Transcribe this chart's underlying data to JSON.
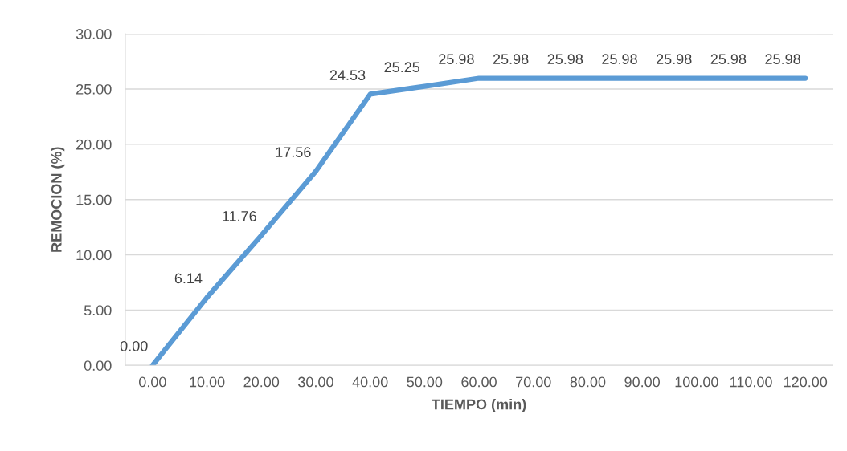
{
  "chart_data": {
    "type": "line",
    "xlabel": "TIEMPO (min)",
    "ylabel": "REMOCION (%)",
    "categories": [
      "0.00",
      "10.00",
      "20.00",
      "30.00",
      "40.00",
      "50.00",
      "60.00",
      "70.00",
      "80.00",
      "90.00",
      "100.00",
      "110.00",
      "120.00"
    ],
    "series": [
      {
        "color": "#5b9bd5",
        "values": [
          0,
          6.14,
          11.76,
          17.56,
          24.53,
          25.25,
          25.98,
          25.98,
          25.98,
          25.98,
          25.98,
          25.98,
          25.98
        ],
        "value_labels": [
          "0.00",
          "6.14",
          "11.76",
          "17.56",
          "24.53",
          "25.25",
          "25.98",
          "25.98",
          "25.98",
          "25.98",
          "25.98",
          "25.98",
          "25.98"
        ]
      }
    ],
    "ylim": [
      0,
      30
    ],
    "yticks": [
      {
        "value": 0,
        "label": "0.00"
      },
      {
        "value": 5,
        "label": "5.00"
      },
      {
        "value": 10,
        "label": "10.00"
      },
      {
        "value": 15,
        "label": "15.00"
      },
      {
        "value": 20,
        "label": "20.00"
      },
      {
        "value": 25,
        "label": "25.00"
      },
      {
        "value": 30,
        "label": "30.00"
      }
    ],
    "grid": "y",
    "legend": false,
    "marker": "none",
    "line_style": "solid"
  }
}
